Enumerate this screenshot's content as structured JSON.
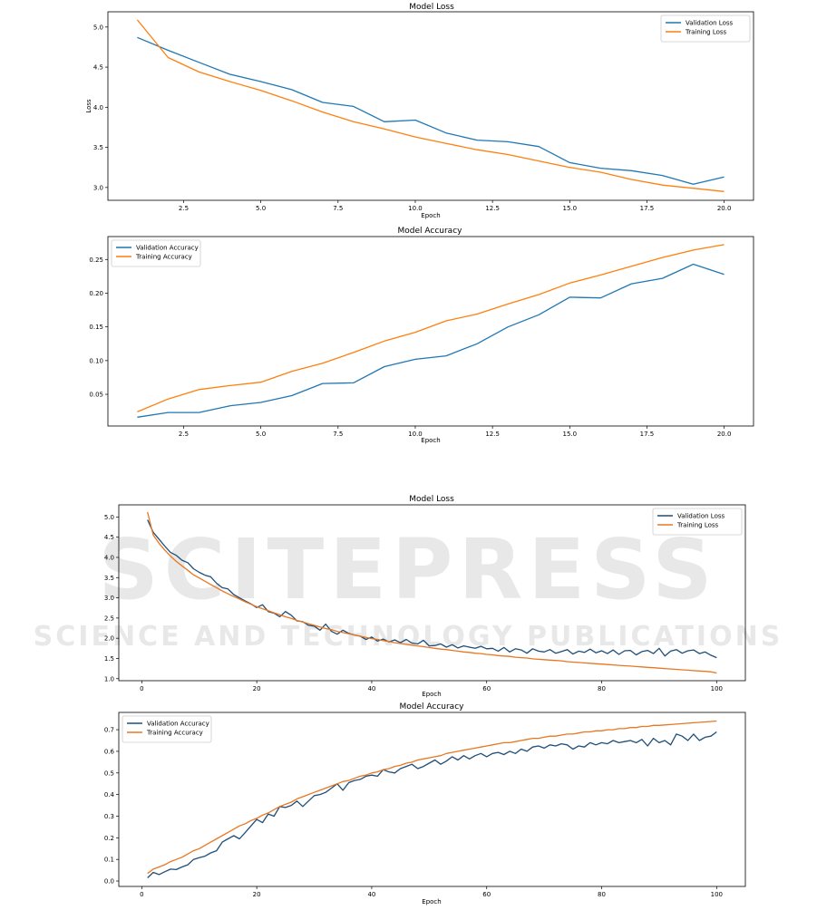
{
  "watermark": {
    "line1": "SCITEPRESS",
    "line2": "SCIENCE AND TECHNOLOGY PUBLICATIONS"
  },
  "chart_data": [
    {
      "type": "line",
      "title": "Model Loss",
      "xlabel": "Epoch",
      "ylabel": "Loss",
      "xlim": [
        0.05,
        20.95
      ],
      "ylim": [
        2.84,
        5.19
      ],
      "xticks": [
        2.5,
        5.0,
        7.5,
        10.0,
        12.5,
        15.0,
        17.5,
        20.0
      ],
      "yticks": [
        3.0,
        3.5,
        4.0,
        4.5,
        5.0
      ],
      "xtick_decimals": 1,
      "ytick_decimals": 1,
      "legend": "upper right",
      "x": [
        1,
        2,
        3,
        4,
        5,
        6,
        7,
        8,
        9,
        10,
        11,
        12,
        13,
        14,
        15,
        16,
        17,
        18,
        19,
        20
      ],
      "series": [
        {
          "name": "Validation Loss",
          "color": "#1f77b4",
          "values": [
            4.87,
            4.71,
            4.56,
            4.41,
            4.32,
            4.22,
            4.06,
            4.01,
            3.82,
            3.84,
            3.68,
            3.59,
            3.57,
            3.51,
            3.31,
            3.24,
            3.21,
            3.15,
            3.04,
            3.13
          ]
        },
        {
          "name": "Training Loss",
          "color": "#ff7f0e",
          "values": [
            5.09,
            4.62,
            4.44,
            4.32,
            4.21,
            4.08,
            3.94,
            3.82,
            3.73,
            3.63,
            3.55,
            3.47,
            3.41,
            3.33,
            3.25,
            3.19,
            3.1,
            3.03,
            2.99,
            2.95
          ]
        }
      ]
    },
    {
      "type": "line",
      "title": "Model Accuracy",
      "xlabel": "Epoch",
      "ylabel": "",
      "xlim": [
        0.05,
        20.95
      ],
      "ylim": [
        0.003,
        0.284
      ],
      "xticks": [
        2.5,
        5.0,
        7.5,
        10.0,
        12.5,
        15.0,
        17.5,
        20.0
      ],
      "yticks": [
        0.05,
        0.1,
        0.15,
        0.2,
        0.25
      ],
      "xtick_decimals": 1,
      "ytick_decimals": 2,
      "legend": "upper left",
      "x": [
        1,
        2,
        3,
        4,
        5,
        6,
        7,
        8,
        9,
        10,
        11,
        12,
        13,
        14,
        15,
        16,
        17,
        18,
        19,
        20
      ],
      "series": [
        {
          "name": "Validation Accuracy",
          "color": "#1f77b4",
          "values": [
            0.016,
            0.023,
            0.023,
            0.033,
            0.038,
            0.048,
            0.066,
            0.067,
            0.091,
            0.102,
            0.107,
            0.125,
            0.15,
            0.168,
            0.194,
            0.193,
            0.214,
            0.222,
            0.243,
            0.228
          ]
        },
        {
          "name": "Training Accuracy",
          "color": "#ff7f0e",
          "values": [
            0.024,
            0.043,
            0.057,
            0.063,
            0.068,
            0.084,
            0.096,
            0.112,
            0.129,
            0.142,
            0.159,
            0.169,
            0.184,
            0.198,
            0.215,
            0.227,
            0.24,
            0.253,
            0.264,
            0.272
          ]
        }
      ]
    },
    {
      "type": "line",
      "title": "Model Loss",
      "xlabel": "Epoch",
      "ylabel": "",
      "xlim": [
        -4,
        105
      ],
      "ylim": [
        0.95,
        5.3
      ],
      "xticks": [
        0,
        20,
        40,
        60,
        80,
        100
      ],
      "yticks": [
        1.0,
        1.5,
        2.0,
        2.5,
        3.0,
        3.5,
        4.0,
        4.5,
        5.0
      ],
      "xtick_decimals": 0,
      "ytick_decimals": 1,
      "legend": "upper right",
      "x": [
        1,
        2,
        3,
        4,
        5,
        6,
        7,
        8,
        9,
        10,
        11,
        12,
        13,
        14,
        15,
        16,
        17,
        18,
        19,
        20,
        21,
        22,
        23,
        24,
        25,
        26,
        27,
        28,
        29,
        30,
        31,
        32,
        33,
        34,
        35,
        36,
        37,
        38,
        39,
        40,
        41,
        42,
        43,
        44,
        45,
        46,
        47,
        48,
        49,
        50,
        51,
        52,
        53,
        54,
        55,
        56,
        57,
        58,
        59,
        60,
        61,
        62,
        63,
        64,
        65,
        66,
        67,
        68,
        69,
        70,
        71,
        72,
        73,
        74,
        75,
        76,
        77,
        78,
        79,
        80,
        81,
        82,
        83,
        84,
        85,
        86,
        87,
        88,
        89,
        90,
        91,
        92,
        93,
        94,
        95,
        96,
        97,
        98,
        99,
        100
      ],
      "series": [
        {
          "name": "Validation Loss",
          "color": "#1f4e79",
          "values": [
            4.93,
            4.62,
            4.45,
            4.28,
            4.12,
            4.05,
            3.93,
            3.87,
            3.72,
            3.63,
            3.56,
            3.52,
            3.36,
            3.25,
            3.22,
            3.08,
            3.0,
            2.92,
            2.85,
            2.76,
            2.83,
            2.66,
            2.62,
            2.53,
            2.66,
            2.57,
            2.43,
            2.41,
            2.32,
            2.3,
            2.2,
            2.35,
            2.17,
            2.1,
            2.2,
            2.12,
            2.08,
            2.05,
            1.97,
            2.03,
            1.93,
            1.98,
            1.91,
            1.96,
            1.89,
            1.97,
            1.88,
            1.86,
            1.95,
            1.81,
            1.82,
            1.86,
            1.78,
            1.84,
            1.76,
            1.81,
            1.78,
            1.75,
            1.8,
            1.74,
            1.75,
            1.68,
            1.77,
            1.66,
            1.74,
            1.71,
            1.63,
            1.74,
            1.68,
            1.66,
            1.72,
            1.63,
            1.67,
            1.72,
            1.61,
            1.68,
            1.65,
            1.73,
            1.64,
            1.69,
            1.62,
            1.71,
            1.6,
            1.69,
            1.7,
            1.59,
            1.67,
            1.7,
            1.62,
            1.75,
            1.56,
            1.68,
            1.72,
            1.63,
            1.69,
            1.71,
            1.62,
            1.66,
            1.58,
            1.52
          ]
        },
        {
          "name": "Training Loss",
          "color": "#e87722",
          "values": [
            5.12,
            4.55,
            4.35,
            4.18,
            4.03,
            3.9,
            3.79,
            3.68,
            3.57,
            3.49,
            3.41,
            3.33,
            3.25,
            3.17,
            3.1,
            3.03,
            2.97,
            2.9,
            2.84,
            2.78,
            2.73,
            2.68,
            2.63,
            2.58,
            2.53,
            2.49,
            2.44,
            2.4,
            2.36,
            2.32,
            2.28,
            2.24,
            2.21,
            2.17,
            2.14,
            2.11,
            2.08,
            2.05,
            2.02,
            1.99,
            1.97,
            1.94,
            1.92,
            1.89,
            1.87,
            1.85,
            1.83,
            1.81,
            1.79,
            1.77,
            1.75,
            1.73,
            1.72,
            1.7,
            1.68,
            1.66,
            1.65,
            1.63,
            1.62,
            1.6,
            1.59,
            1.57,
            1.56,
            1.55,
            1.53,
            1.52,
            1.51,
            1.49,
            1.48,
            1.47,
            1.46,
            1.45,
            1.44,
            1.42,
            1.41,
            1.4,
            1.39,
            1.38,
            1.37,
            1.36,
            1.35,
            1.34,
            1.33,
            1.32,
            1.31,
            1.3,
            1.29,
            1.28,
            1.27,
            1.26,
            1.25,
            1.24,
            1.23,
            1.22,
            1.21,
            1.2,
            1.19,
            1.18,
            1.17,
            1.14
          ]
        }
      ]
    },
    {
      "type": "line",
      "title": "Model Accuracy",
      "xlabel": "Epoch",
      "ylabel": "",
      "xlim": [
        -4,
        105
      ],
      "ylim": [
        -0.025,
        0.78
      ],
      "xticks": [
        0,
        20,
        40,
        60,
        80,
        100
      ],
      "yticks": [
        0.0,
        0.1,
        0.2,
        0.3,
        0.4,
        0.5,
        0.6,
        0.7
      ],
      "xtick_decimals": 0,
      "ytick_decimals": 1,
      "legend": "upper left",
      "x": [
        1,
        2,
        3,
        4,
        5,
        6,
        7,
        8,
        9,
        10,
        11,
        12,
        13,
        14,
        15,
        16,
        17,
        18,
        19,
        20,
        21,
        22,
        23,
        24,
        25,
        26,
        27,
        28,
        29,
        30,
        31,
        32,
        33,
        34,
        35,
        36,
        37,
        38,
        39,
        40,
        41,
        42,
        43,
        44,
        45,
        46,
        47,
        48,
        49,
        50,
        51,
        52,
        53,
        54,
        55,
        56,
        57,
        58,
        59,
        60,
        61,
        62,
        63,
        64,
        65,
        66,
        67,
        68,
        69,
        70,
        71,
        72,
        73,
        74,
        75,
        76,
        77,
        78,
        79,
        80,
        81,
        82,
        83,
        84,
        85,
        86,
        87,
        88,
        89,
        90,
        91,
        92,
        93,
        94,
        95,
        96,
        97,
        98,
        99,
        100
      ],
      "series": [
        {
          "name": "Validation Accuracy",
          "color": "#1f4e79",
          "values": [
            0.015,
            0.04,
            0.03,
            0.043,
            0.055,
            0.053,
            0.065,
            0.075,
            0.1,
            0.108,
            0.115,
            0.13,
            0.14,
            0.18,
            0.195,
            0.21,
            0.195,
            0.225,
            0.255,
            0.285,
            0.27,
            0.31,
            0.3,
            0.345,
            0.34,
            0.35,
            0.37,
            0.345,
            0.37,
            0.395,
            0.4,
            0.41,
            0.43,
            0.45,
            0.42,
            0.455,
            0.465,
            0.47,
            0.485,
            0.49,
            0.485,
            0.515,
            0.505,
            0.5,
            0.52,
            0.53,
            0.54,
            0.52,
            0.53,
            0.545,
            0.56,
            0.54,
            0.555,
            0.575,
            0.56,
            0.58,
            0.565,
            0.58,
            0.59,
            0.575,
            0.59,
            0.595,
            0.585,
            0.6,
            0.59,
            0.61,
            0.6,
            0.62,
            0.625,
            0.615,
            0.63,
            0.625,
            0.635,
            0.63,
            0.61,
            0.625,
            0.62,
            0.64,
            0.63,
            0.64,
            0.635,
            0.65,
            0.64,
            0.645,
            0.65,
            0.64,
            0.655,
            0.625,
            0.66,
            0.64,
            0.65,
            0.63,
            0.68,
            0.67,
            0.65,
            0.68,
            0.65,
            0.665,
            0.67,
            0.69
          ]
        },
        {
          "name": "Training Accuracy",
          "color": "#e87722",
          "values": [
            0.035,
            0.055,
            0.065,
            0.075,
            0.09,
            0.1,
            0.11,
            0.125,
            0.14,
            0.15,
            0.165,
            0.18,
            0.195,
            0.21,
            0.225,
            0.24,
            0.255,
            0.265,
            0.28,
            0.29,
            0.305,
            0.315,
            0.33,
            0.345,
            0.355,
            0.365,
            0.38,
            0.39,
            0.4,
            0.41,
            0.42,
            0.43,
            0.44,
            0.45,
            0.46,
            0.465,
            0.475,
            0.485,
            0.49,
            0.5,
            0.505,
            0.515,
            0.52,
            0.53,
            0.535,
            0.545,
            0.55,
            0.56,
            0.565,
            0.57,
            0.575,
            0.58,
            0.59,
            0.595,
            0.6,
            0.605,
            0.61,
            0.615,
            0.62,
            0.625,
            0.63,
            0.635,
            0.64,
            0.64,
            0.645,
            0.65,
            0.655,
            0.66,
            0.66,
            0.665,
            0.67,
            0.67,
            0.675,
            0.68,
            0.68,
            0.685,
            0.69,
            0.69,
            0.695,
            0.695,
            0.7,
            0.7,
            0.705,
            0.705,
            0.71,
            0.71,
            0.715,
            0.715,
            0.72,
            0.72,
            0.722,
            0.724,
            0.726,
            0.728,
            0.73,
            0.732,
            0.734,
            0.736,
            0.738,
            0.74
          ]
        }
      ]
    }
  ]
}
